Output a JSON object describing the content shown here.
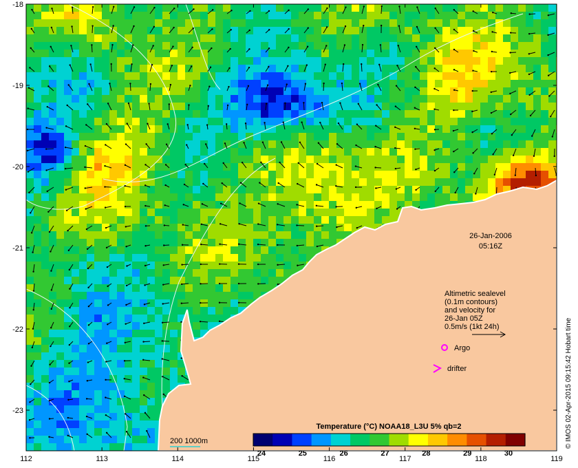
{
  "map": {
    "lon_range": [
      112,
      119
    ],
    "lat_range": [
      -23.5,
      -18
    ],
    "x_ticks": [
      "112",
      "113",
      "114",
      "115",
      "116",
      "117",
      "118",
      "119"
    ],
    "y_ticks": [
      "-18",
      "-19",
      "-20",
      "-21",
      "-22",
      "-23"
    ],
    "colors": {
      "land": "#f9c89f",
      "coast": "#ffffff",
      "contour": "#e8f6f6"
    }
  },
  "timestamp": {
    "date": "26-Jan-2006",
    "time": "05:16Z"
  },
  "legend": {
    "lines": [
      "Altimetric sealevel",
      "(0.1m contours)",
      "and velocity for",
      "26-Jan 05Z",
      "0.5m/s (1kt 24h)"
    ],
    "argo_label": "Argo",
    "drifter_label": "drifter",
    "marker_color": "#ff00ff"
  },
  "scale_label": "200  1000m",
  "colorbar": {
    "title": "Temperature (°C) NOAA18_L3U 5% qb=2",
    "labels": [
      "24",
      "25",
      "26",
      "27",
      "28",
      "29",
      "30"
    ],
    "colors": [
      "#000070",
      "#0000b4",
      "#0040ff",
      "#0096ff",
      "#00d2d2",
      "#00c864",
      "#32c832",
      "#a0dc00",
      "#ffff00",
      "#ffc800",
      "#ff8c00",
      "#e65000",
      "#b41e00",
      "#800000"
    ]
  },
  "credit": "© IMOS 02-Apr-2015 09:15:42 Hobart time"
}
